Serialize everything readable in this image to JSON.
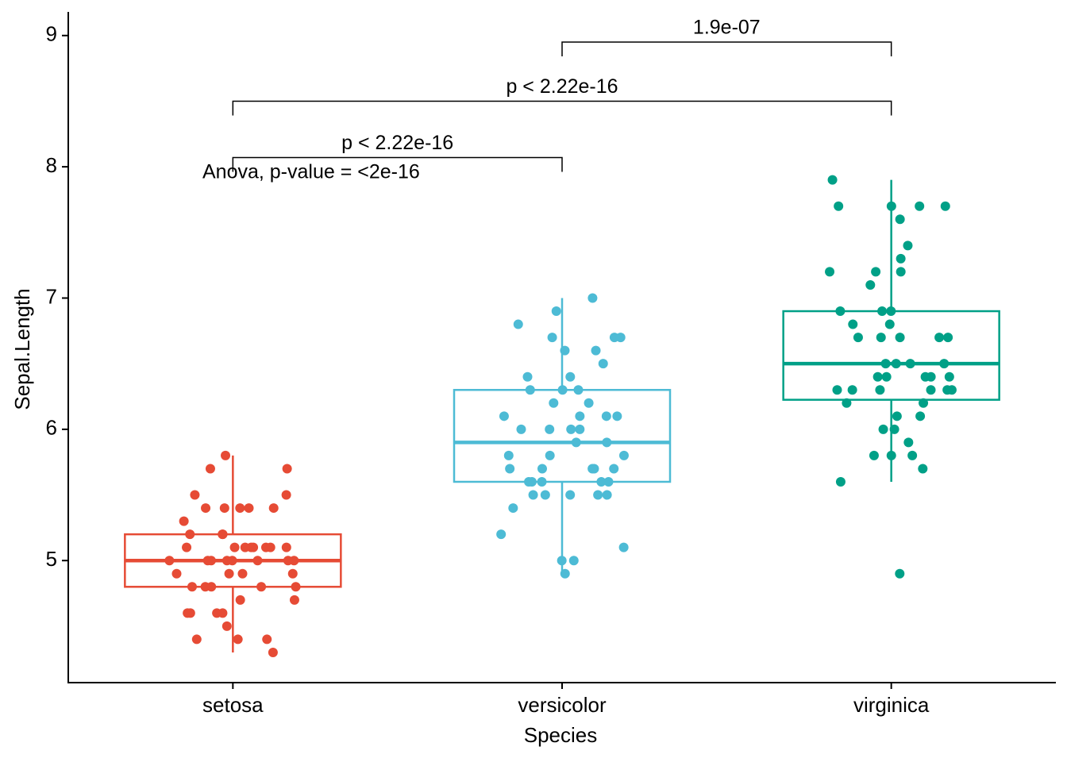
{
  "chart_data": {
    "type": "box",
    "x_label": "Species",
    "y_label": "Sepal.Length",
    "categories": [
      "setosa",
      "versicolor",
      "virginica"
    ],
    "ylim": [
      4.07,
      9.18
    ],
    "yticks": [
      5,
      6,
      7,
      8,
      9
    ],
    "annotation": "Anova, p-value = <2e-16",
    "comparisons": [
      {
        "groups": [
          "setosa",
          "versicolor"
        ],
        "label": "p < 2.22e-16"
      },
      {
        "groups": [
          "setosa",
          "virginica"
        ],
        "label": "p < 2.22e-16"
      },
      {
        "groups": [
          "versicolor",
          "virginica"
        ],
        "label": "1.9e-07"
      }
    ],
    "series": [
      {
        "name": "setosa",
        "color": "#E64B35",
        "whisker_low": 4.3,
        "q1": 4.8,
        "median": 5.0,
        "q3": 5.2,
        "whisker_high": 5.8,
        "values": [
          5.1,
          4.9,
          4.7,
          4.6,
          5.0,
          5.4,
          4.6,
          5.0,
          4.4,
          4.9,
          5.4,
          4.8,
          4.8,
          4.3,
          5.8,
          5.7,
          5.4,
          5.1,
          5.7,
          5.1,
          5.4,
          5.1,
          4.6,
          5.1,
          4.8,
          5.0,
          5.0,
          5.2,
          5.2,
          4.7,
          4.8,
          5.4,
          5.2,
          5.5,
          4.9,
          5.0,
          5.5,
          4.9,
          4.4,
          5.1,
          5.0,
          4.5,
          4.4,
          5.0,
          5.1,
          4.8,
          5.1,
          4.6,
          5.3,
          5.0
        ]
      },
      {
        "name": "versicolor",
        "color": "#4DBBD5",
        "whisker_low": 4.9,
        "q1": 5.6,
        "median": 5.9,
        "q3": 6.3,
        "whisker_high": 7.0,
        "values": [
          7.0,
          6.4,
          6.9,
          5.5,
          6.5,
          5.7,
          6.3,
          4.9,
          6.6,
          5.2,
          5.0,
          5.9,
          6.0,
          6.1,
          5.6,
          6.7,
          5.6,
          5.8,
          6.2,
          5.6,
          5.9,
          6.1,
          6.3,
          6.1,
          6.4,
          6.6,
          6.8,
          6.7,
          6.0,
          5.7,
          5.5,
          5.5,
          5.8,
          6.0,
          5.4,
          6.0,
          6.7,
          6.3,
          5.6,
          5.5,
          5.5,
          6.1,
          5.8,
          5.0,
          5.6,
          5.7,
          5.7,
          6.2,
          5.1,
          5.7
        ]
      },
      {
        "name": "virginica",
        "color": "#00A087",
        "whisker_low": 5.6,
        "q1": 6.225,
        "median": 6.5,
        "q3": 6.9,
        "whisker_high": 7.9,
        "values": [
          6.3,
          5.8,
          7.1,
          6.3,
          6.5,
          7.6,
          4.9,
          7.3,
          6.7,
          7.2,
          6.5,
          6.4,
          6.8,
          5.7,
          5.8,
          6.4,
          6.5,
          7.7,
          7.7,
          6.0,
          6.9,
          5.6,
          7.7,
          6.3,
          6.7,
          7.2,
          6.2,
          6.1,
          6.4,
          7.2,
          7.4,
          7.9,
          6.4,
          6.3,
          6.1,
          7.7,
          6.3,
          6.4,
          6.0,
          6.9,
          6.7,
          6.9,
          5.8,
          6.8,
          6.7,
          6.7,
          6.3,
          6.5,
          6.2,
          5.9
        ]
      }
    ]
  }
}
